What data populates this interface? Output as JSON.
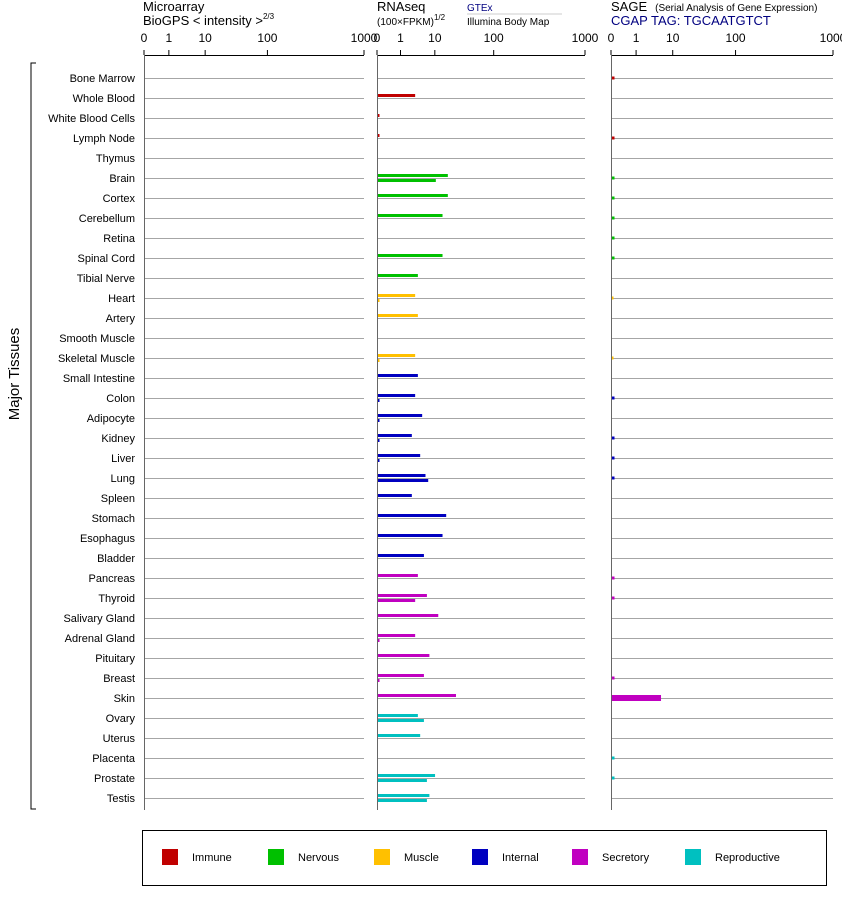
{
  "headers": {
    "microarray": {
      "line1": "Microarray",
      "line2": "BioGPS   < intensity >",
      "exp": "2/3"
    },
    "rnaseq": {
      "line1": "RNAseq",
      "line2": "(100×FPKM)",
      "exp": "1/2",
      "src_gtex": "GTEx",
      "src_ibm": "Illumina Body Map"
    },
    "sage": {
      "line1": "SAGE",
      "line1_note": "(Serial Analysis of Gene Expression)",
      "line2": "CGAP TAG: TGCAATGTCT"
    }
  },
  "axis_ticks": [
    "0",
    "1",
    "10",
    "100",
    "1000"
  ],
  "side_label": "Major Tissues",
  "legend": [
    {
      "name": "Immune",
      "color": "#c00000"
    },
    {
      "name": "Nervous",
      "color": "#00c000"
    },
    {
      "name": "Muscle",
      "color": "#ffc000"
    },
    {
      "name": "Internal",
      "color": "#0000c0"
    },
    {
      "name": "Secretory",
      "color": "#c000c0"
    },
    {
      "name": "Reproductive",
      "color": "#00c0c0"
    }
  ],
  "chart_data": [
    {
      "type": "bar",
      "title": "Microarray BioGPS < intensity >^(2/3)",
      "axis_scale": "log-like (0, 1, 10, 100, 1000)",
      "xlim": [
        0,
        1000
      ],
      "categories": [
        "Bone Marrow",
        "Whole Blood",
        "White Blood Cells",
        "Lymph Node",
        "Thymus",
        "Brain",
        "Cortex",
        "Cerebellum",
        "Retina",
        "Spinal Cord",
        "Tibial Nerve",
        "Heart",
        "Artery",
        "Smooth Muscle",
        "Skeletal Muscle",
        "Small Intestine",
        "Colon",
        "Adipocyte",
        "Kidney",
        "Liver",
        "Lung",
        "Spleen",
        "Stomach",
        "Esophagus",
        "Bladder",
        "Pancreas",
        "Thyroid",
        "Salivary Gland",
        "Adrenal Gland",
        "Pituitary",
        "Breast",
        "Skin",
        "Ovary",
        "Uterus",
        "Placenta",
        "Prostate",
        "Testis"
      ],
      "values": [
        0,
        0,
        0,
        0,
        0,
        0,
        0,
        0,
        0,
        0,
        0,
        0,
        0,
        0,
        0,
        0,
        0,
        0,
        0,
        0,
        0,
        0,
        0,
        0,
        0,
        0,
        0,
        0,
        0,
        0,
        0,
        0,
        0,
        0,
        0,
        0,
        0
      ]
    },
    {
      "type": "bar",
      "title": "RNAseq (100×FPKM)^(1/2)",
      "axis_scale": "log-like (0, 1, 10, 100, 1000)",
      "xlim": [
        0,
        1000
      ],
      "series": [
        {
          "name": "GTEx",
          "values": [
            0,
            2.5,
            0.05,
            0.05,
            0,
            16,
            16,
            13,
            0,
            13,
            3,
            2.5,
            3,
            0,
            2.5,
            3,
            2.5,
            4,
            2,
            3.5,
            5,
            2,
            15,
            13,
            4.5,
            3,
            5.5,
            11,
            2.5,
            6.5,
            4.5,
            22,
            3,
            3.5,
            0,
            9.5,
            6.5
          ]
        },
        {
          "name": "Illumina Body Map",
          "values": [
            0,
            0,
            0,
            0,
            0,
            10,
            0,
            0,
            0,
            0,
            0,
            0.05,
            0,
            0,
            0.05,
            0,
            0.05,
            0.05,
            0.05,
            0.05,
            6,
            0,
            0,
            0,
            0,
            0,
            2.5,
            0,
            0.05,
            0,
            0.05,
            0,
            4.5,
            0,
            0,
            5.5,
            5.5
          ]
        }
      ]
    },
    {
      "type": "bar",
      "title": "SAGE CGAP TAG: TGCAATGTCT",
      "axis_scale": "log-like (0, 1, 10, 100, 1000)",
      "xlim": [
        0,
        1000
      ],
      "values": [
        0.1,
        0,
        0,
        0.1,
        0,
        0.1,
        0.1,
        0.1,
        0.1,
        0.1,
        0,
        0.05,
        0,
        0,
        0.05,
        0,
        0.1,
        0,
        0.1,
        0.1,
        0.1,
        0,
        0,
        0,
        0,
        0.1,
        0.1,
        0,
        0,
        0,
        0.1,
        4.5,
        0,
        0,
        0.1,
        0.1,
        0
      ]
    }
  ]
}
